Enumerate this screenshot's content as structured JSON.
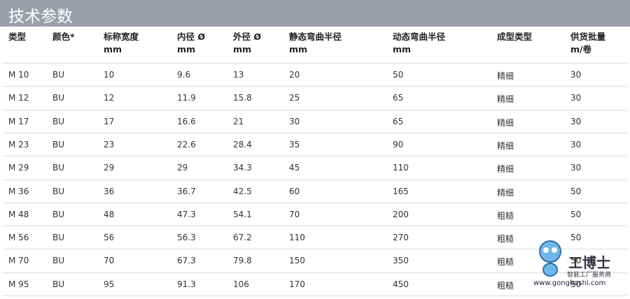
{
  "header": {
    "title": "技术参数"
  },
  "table": {
    "columns": [
      [
        "类型"
      ],
      [
        "颜色*"
      ],
      [
        "标称宽度",
        "mm"
      ],
      [
        "内径 Ø",
        "mm"
      ],
      [
        "外径 Ø",
        "mm"
      ],
      [
        "静态弯曲半径",
        "mm"
      ],
      [
        "动态弯曲半径",
        "mm"
      ],
      [
        "成型类型"
      ],
      [
        "供货批量",
        "m/卷"
      ]
    ],
    "rows": [
      [
        "M 10",
        "BU",
        "10",
        "9.6",
        "13",
        "20",
        "50",
        "精细",
        "30"
      ],
      [
        "M 12",
        "BU",
        "12",
        "11.9",
        "15.8",
        "25",
        "65",
        "精细",
        "30"
      ],
      [
        "M 17",
        "BU",
        "17",
        "16.6",
        "21",
        "30",
        "65",
        "精细",
        "30"
      ],
      [
        "M 23",
        "BU",
        "23",
        "22.6",
        "28.4",
        "35",
        "90",
        "精细",
        "30"
      ],
      [
        "M 29",
        "BU",
        "29",
        "29",
        "34.3",
        "45",
        "110",
        "精细",
        "30"
      ],
      [
        "M 36",
        "BU",
        "36",
        "36.7",
        "42.5",
        "60",
        "165",
        "精细",
        "50"
      ],
      [
        "M 48",
        "BU",
        "48",
        "47.3",
        "54.1",
        "70",
        "200",
        "粗糙",
        "50"
      ],
      [
        "M 56",
        "BU",
        "56",
        "56.3",
        "67.2",
        "110",
        "270",
        "粗糙",
        "50"
      ],
      [
        "M 70",
        "BU",
        "70",
        "67.3",
        "79.8",
        "150",
        "350",
        "粗糙",
        "50"
      ],
      [
        "M 95",
        "BU",
        "95",
        "91.3",
        "106",
        "170",
        "450",
        "粗糙",
        "50"
      ]
    ]
  },
  "watermark": {
    "brand": "工博士",
    "slogan": "智能工厂服务商",
    "url": "www.gongboshi.com"
  }
}
